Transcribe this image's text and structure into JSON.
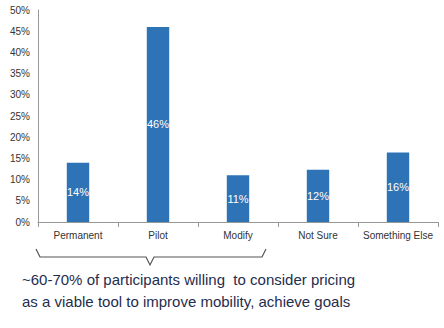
{
  "chart_data": {
    "type": "bar",
    "categories": [
      "Permanent",
      "Pilot",
      "Modify",
      "Not Sure",
      "Something Else"
    ],
    "values": [
      14,
      46,
      11,
      12.3,
      16.4
    ],
    "value_labels": [
      "14%",
      "46%",
      "11%",
      "12%",
      "16%"
    ],
    "data_labels": true,
    "color": "#2e73b5",
    "ylim": [
      0,
      50
    ],
    "yticks": [
      {
        "value": 0,
        "label": "0%"
      },
      {
        "value": 5,
        "label": "5%"
      },
      {
        "value": 10,
        "label": "10%"
      },
      {
        "value": 15,
        "label": "15%"
      },
      {
        "value": 20,
        "label": "20%"
      },
      {
        "value": 25,
        "label": "25%"
      },
      {
        "value": 30,
        "label": "30%"
      },
      {
        "value": 35,
        "label": "35%"
      },
      {
        "value": 40,
        "label": "40%"
      },
      {
        "value": 45,
        "label": "45%"
      },
      {
        "value": 50,
        "label": "50%"
      }
    ],
    "grid": false,
    "annotation": [
      "~60-70% of participants willing  to consider pricing",
      "as a viable tool to improve mobility, achieve goals"
    ]
  }
}
